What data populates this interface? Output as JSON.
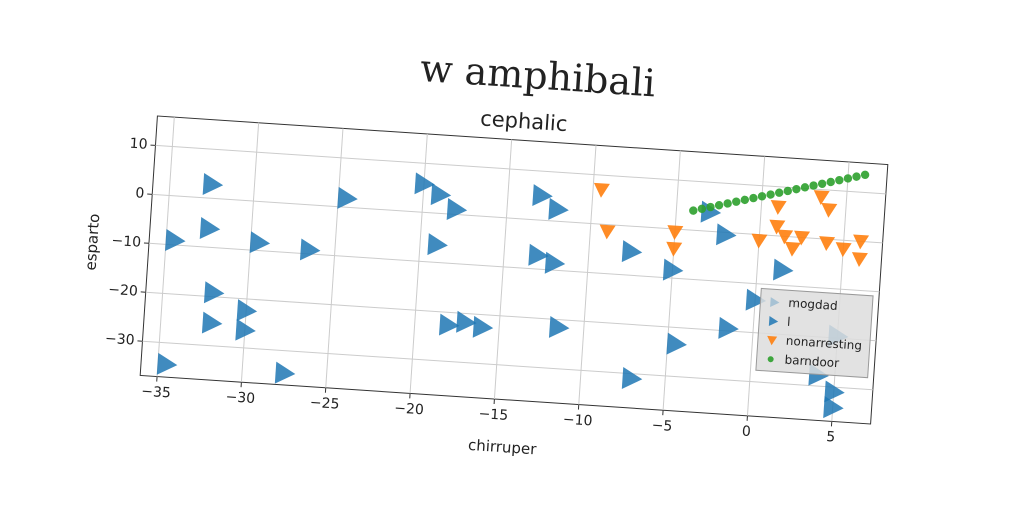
{
  "chart_data": {
    "type": "scatter",
    "title": "w amphibali",
    "subtitle": "cephalic",
    "x_label": "chirruper",
    "y_label": "esparto",
    "xlim": [
      -36,
      7.3
    ],
    "ylim": [
      -37,
      16
    ],
    "xticks": [
      {
        "value": -35,
        "label": "−35"
      },
      {
        "value": -30,
        "label": "−30"
      },
      {
        "value": -25,
        "label": "−25"
      },
      {
        "value": -20,
        "label": "−20"
      },
      {
        "value": -15,
        "label": "−15"
      },
      {
        "value": -10,
        "label": "−10"
      },
      {
        "value": -5,
        "label": "−5"
      },
      0,
      5
    ],
    "yticks": [
      {
        "value": -30,
        "label": "−30"
      },
      {
        "value": -20,
        "label": "−20"
      },
      {
        "value": -10,
        "label": "−10"
      },
      0,
      10
    ],
    "grid": true,
    "legend": "lower right",
    "series": [
      {
        "name": "mogdad",
        "color": "#1f77b4",
        "marker": "triangle-right",
        "alpha": 0.85,
        "x": [
          -32.5,
          -32.5,
          -34.5,
          -29.5,
          -26.5,
          -24.5,
          -32,
          -32,
          -30,
          -30,
          -34.5,
          -27.5,
          -20,
          -19,
          -18,
          -19,
          -18,
          -17,
          -16
        ],
        "values": [
          2.8,
          -6.2,
          -9.1,
          -8.4,
          -9.2,
          1.8,
          -19.2,
          -25.4,
          -22.4,
          -26.4,
          -34.4,
          -34.6,
          5.8,
          3.8,
          1,
          -6.4,
          -22.6,
          -21.8,
          -22.6
        ]
      },
      {
        "name": "l",
        "color": "#1f77b4",
        "marker": "triangle-right",
        "alpha": 0.85,
        "x": [
          -13,
          -12,
          -13,
          -12,
          -11.5,
          -7.5,
          -5,
          -7,
          -4.5,
          -2,
          -3,
          -1.5,
          0,
          5,
          4,
          5,
          5,
          1.5
        ],
        "values": [
          5,
          2.4,
          -7.2,
          -8.6,
          -21.6,
          -5.2,
          -8.4,
          -31,
          -23.4,
          -0.5,
          3.9,
          -19.5,
          -13.4,
          -19.6,
          -27.8,
          -31,
          -34.2,
          -6.9
        ]
      },
      {
        "name": "nonarresting",
        "color": "#ff7f0e",
        "marker": "triangle-down",
        "alpha": 0.9,
        "x": [
          -9.5,
          -9,
          -5,
          -5,
          0,
          1,
          1,
          1.5,
          2,
          2.5,
          3.5,
          4,
          4,
          6,
          6,
          5
        ],
        "values": [
          7,
          -1.4,
          -0.6,
          -4,
          -1.2,
          5.9,
          1.9,
          0,
          -2.4,
          0,
          8.5,
          6,
          -0.8,
          0,
          -3.6,
          -1.8
        ]
      },
      {
        "name": "barndoor",
        "color": "#2ca02c",
        "marker": "circle",
        "alpha": 0.9,
        "x": [
          -4,
          -3.5,
          -3,
          -2.5,
          -2,
          -1.5,
          -1,
          -0.5,
          0,
          0.5,
          1,
          1.5,
          2,
          2.5,
          3,
          3.5,
          4,
          4.5,
          5,
          5.5,
          6
        ],
        "values": [
          4,
          4.48,
          4.96,
          5.44,
          5.92,
          6.4,
          6.88,
          7.36,
          7.84,
          8.32,
          8.8,
          9.28,
          9.76,
          10.24,
          10.72,
          11.2,
          11.68,
          12.16,
          12.64,
          13.12,
          13.6
        ]
      }
    ]
  }
}
